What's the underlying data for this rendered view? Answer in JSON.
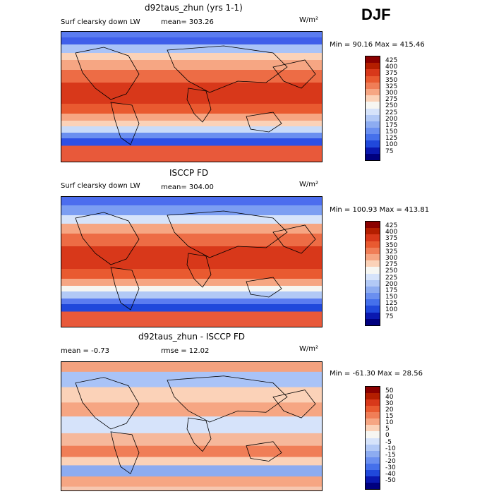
{
  "season": "DJF",
  "panels": [
    {
      "title": "d92taus_zhun (yrs 1-1)",
      "left_label": "Surf clearsky down LW",
      "stat_label": "mean= 303.26",
      "units": "W/m²",
      "minmax": "Min =  90.16 Max = 415.46",
      "colorbar": {
        "labels": [
          "425",
          "400",
          "375",
          "350",
          "325",
          "300",
          "275",
          "250",
          "225",
          "200",
          "175",
          "150",
          "125",
          "100",
          "75"
        ],
        "colors": [
          "#8b0000",
          "#b41e00",
          "#d8381a",
          "#e95a30",
          "#f07e57",
          "#f6a683",
          "#fbd2b8",
          "#f6f6f2",
          "#d6e3fa",
          "#b2c9f6",
          "#8dacf1",
          "#6a8ff0",
          "#4570eb",
          "#2048db",
          "#0a18b0",
          "#00007f"
        ]
      },
      "map": {
        "background": "#e8593a",
        "bands": [
          {
            "y": 0,
            "h": 8,
            "color": "#5b7cf0"
          },
          {
            "y": 8,
            "h": 10,
            "color": "#3f5fea"
          },
          {
            "y": 18,
            "h": 12,
            "color": "#a9c3f7"
          },
          {
            "y": 30,
            "h": 10,
            "color": "#fbd2b8"
          },
          {
            "y": 40,
            "h": 14,
            "color": "#f6a683"
          },
          {
            "y": 54,
            "h": 18,
            "color": "#ed6c45"
          },
          {
            "y": 72,
            "h": 30,
            "color": "#d8381a"
          },
          {
            "y": 102,
            "h": 14,
            "color": "#e95a30"
          },
          {
            "y": 116,
            "h": 10,
            "color": "#f6a683"
          },
          {
            "y": 126,
            "h": 8,
            "color": "#fbd2b8"
          },
          {
            "y": 134,
            "h": 9,
            "color": "#c9dbf9"
          },
          {
            "y": 143,
            "h": 8,
            "color": "#6a8ff0"
          },
          {
            "y": 151,
            "h": 10,
            "color": "#2e50e6"
          }
        ]
      }
    },
    {
      "title": "ISCCP FD",
      "left_label": "Surf clearsky down LW",
      "stat_label": "mean= 304.00",
      "units": "W/m²",
      "minmax": "Min = 100.93 Max = 413.81",
      "colorbar": {
        "labels": [
          "425",
          "400",
          "375",
          "350",
          "325",
          "300",
          "275",
          "250",
          "225",
          "200",
          "175",
          "150",
          "125",
          "100",
          "75"
        ],
        "colors": [
          "#8b0000",
          "#b41e00",
          "#d8381a",
          "#e95a30",
          "#f07e57",
          "#f6a683",
          "#fbd2b8",
          "#f6f6f2",
          "#d6e3fa",
          "#b2c9f6",
          "#8dacf1",
          "#6a8ff0",
          "#4570eb",
          "#2048db",
          "#0a18b0",
          "#00007f"
        ]
      },
      "map": {
        "background": "#e8593a",
        "bands": [
          {
            "y": 0,
            "h": 12,
            "color": "#4c6dee"
          },
          {
            "y": 12,
            "h": 14,
            "color": "#7c9ef2"
          },
          {
            "y": 26,
            "h": 12,
            "color": "#d6e3fa"
          },
          {
            "y": 38,
            "h": 14,
            "color": "#f6a683"
          },
          {
            "y": 52,
            "h": 18,
            "color": "#ed6c45"
          },
          {
            "y": 70,
            "h": 32,
            "color": "#d8381a"
          },
          {
            "y": 102,
            "h": 14,
            "color": "#e95a30"
          },
          {
            "y": 116,
            "h": 10,
            "color": "#f6a683"
          },
          {
            "y": 126,
            "h": 8,
            "color": "#f6f6f2"
          },
          {
            "y": 134,
            "h": 10,
            "color": "#b2c9f6"
          },
          {
            "y": 144,
            "h": 8,
            "color": "#5b7cf0"
          },
          {
            "y": 152,
            "h": 10,
            "color": "#2048db"
          }
        ]
      }
    },
    {
      "title": "d92taus_zhun - ISCCP FD",
      "left_label": "mean =   -0.73",
      "stat_label": "rmse =   12.02",
      "units": "W/m²",
      "minmax": "Min = -61.30 Max =  28.56",
      "colorbar": {
        "labels": [
          "50",
          "40",
          "30",
          "20",
          "15",
          "10",
          "5",
          "0",
          "-5",
          "-10",
          "-15",
          "-20",
          "-30",
          "-40",
          "-50"
        ],
        "colors": [
          "#8b0000",
          "#b41e00",
          "#d8381a",
          "#e95a30",
          "#f07e57",
          "#f6a683",
          "#fbd2b8",
          "#f6f6f2",
          "#d6e3fa",
          "#b2c9f6",
          "#8dacf1",
          "#6a8ff0",
          "#4570eb",
          "#2048db",
          "#0a18b0",
          "#00007f"
        ]
      },
      "map": {
        "background": "#f6c7b0",
        "bands": [
          {
            "y": 0,
            "h": 14,
            "color": "#f4a27f"
          },
          {
            "y": 14,
            "h": 22,
            "color": "#a9c3f7"
          },
          {
            "y": 36,
            "h": 22,
            "color": "#fbd2b8"
          },
          {
            "y": 58,
            "h": 20,
            "color": "#f6a683"
          },
          {
            "y": 78,
            "h": 24,
            "color": "#d6e3fa"
          },
          {
            "y": 102,
            "h": 18,
            "color": "#f6b89b"
          },
          {
            "y": 120,
            "h": 16,
            "color": "#f07e57"
          },
          {
            "y": 136,
            "h": 12,
            "color": "#fbd2b8"
          },
          {
            "y": 148,
            "h": 16,
            "color": "#8dacf1"
          },
          {
            "y": 164,
            "h": 14,
            "color": "#f6a683"
          }
        ]
      }
    }
  ]
}
